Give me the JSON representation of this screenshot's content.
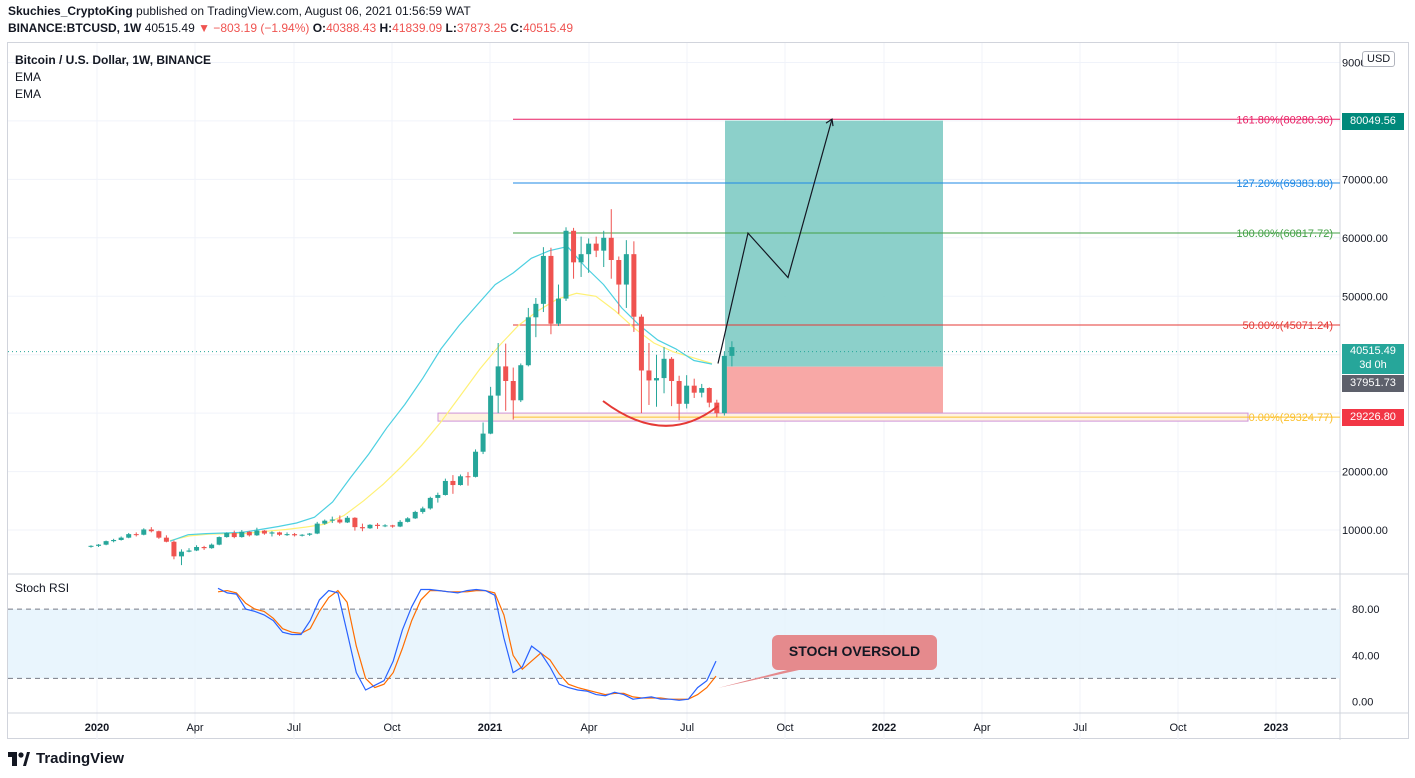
{
  "header": {
    "author": "Skuchies_CryptoKing",
    "published": "published on TradingView.com, August 06, 2021 01:56:59 WAT",
    "symbol": "BINANCE:BTCUSD, 1W",
    "last": "40515.49",
    "change": "▼ −803.19 (−1.94%)",
    "o_label": "O:",
    "o_value": "40388.43",
    "h_label": "H:",
    "h_value": "41839.09",
    "l_label": "L:",
    "l_value": "37873.25",
    "c_label": "C:",
    "c_value": "40515.49"
  },
  "legend": {
    "title": "Bitcoin / U.S. Dollar, 1W, BINANCE",
    "ema1": "EMA",
    "ema2": "EMA",
    "stoch": "Stoch RSI"
  },
  "currency_button": "USD",
  "price_badges": {
    "target": "80049.56",
    "last": "40515.49",
    "countdown": "3d 0h",
    "entry": "37951.73",
    "stop": "29226.80"
  },
  "callout": "STOCH OVERSOLD",
  "footer": {
    "brand": "TradingView"
  },
  "colors": {
    "up": "#26a69a",
    "down": "#ef5350",
    "ema_fast": "#4dd0e1",
    "ema_slow": "#fff176",
    "k_line": "#2962ff",
    "d_line": "#ff6d00",
    "target_zone": "#80cbc4",
    "stop_zone": "#f8a3a1"
  },
  "chart_data": [
    {
      "type": "candlestick",
      "title": "Bitcoin / U.S. Dollar, 1W, BINANCE",
      "x_ticks": [
        "2020",
        "Apr",
        "Jul",
        "Oct",
        "2021",
        "Apr",
        "Jul",
        "Oct",
        "2022",
        "Apr",
        "Jul",
        "Oct",
        "2023"
      ],
      "y_ticks": [
        "10000.00",
        "20000.00",
        "30000.00",
        "40000.00",
        "50000.00",
        "60000.00",
        "70000.00",
        "90000.00"
      ],
      "ylim": [
        0,
        91000
      ],
      "candles": [
        [
          7200,
          7400,
          7000,
          7300
        ],
        [
          7300,
          7600,
          7100,
          7500
        ],
        [
          7500,
          8200,
          7400,
          8100
        ],
        [
          8100,
          8500,
          7900,
          8300
        ],
        [
          8300,
          8900,
          8200,
          8700
        ],
        [
          8700,
          9500,
          8600,
          9300
        ],
        [
          9300,
          9600,
          8900,
          9200
        ],
        [
          9200,
          10300,
          9100,
          10100
        ],
        [
          10100,
          10500,
          9600,
          9800
        ],
        [
          9800,
          9900,
          8500,
          8700
        ],
        [
          8700,
          9100,
          7900,
          8000
        ],
        [
          8000,
          8200,
          5000,
          5500
        ],
        [
          5500,
          6700,
          4000,
          6300
        ],
        [
          6300,
          6900,
          6200,
          6500
        ],
        [
          6500,
          7400,
          6400,
          7100
        ],
        [
          7100,
          7300,
          6600,
          6900
        ],
        [
          6900,
          7700,
          6800,
          7500
        ],
        [
          7500,
          8900,
          7400,
          8800
        ],
        [
          8800,
          9600,
          8700,
          9500
        ],
        [
          9500,
          9900,
          8600,
          8800
        ],
        [
          8800,
          10000,
          8700,
          9700
        ],
        [
          9700,
          9800,
          8900,
          9100
        ],
        [
          9100,
          10400,
          9000,
          9900
        ],
        [
          9900,
          10000,
          9200,
          9400
        ],
        [
          9400,
          9800,
          8900,
          9600
        ],
        [
          9600,
          9700,
          9000,
          9200
        ],
        [
          9200,
          9600,
          9000,
          9300
        ],
        [
          9300,
          9500,
          8900,
          9100
        ],
        [
          9100,
          9300,
          8900,
          9200
        ],
        [
          9200,
          9500,
          9000,
          9400
        ],
        [
          9400,
          11400,
          9300,
          11100
        ],
        [
          11100,
          11800,
          10900,
          11600
        ],
        [
          11600,
          12300,
          11200,
          11800
        ],
        [
          11800,
          12500,
          11100,
          11300
        ],
        [
          11300,
          12400,
          11200,
          12100
        ],
        [
          12100,
          12200,
          9900,
          10500
        ],
        [
          10500,
          11100,
          9800,
          10300
        ],
        [
          10300,
          11000,
          10200,
          10900
        ],
        [
          10900,
          11200,
          10200,
          10700
        ],
        [
          10700,
          11000,
          10500,
          10800
        ],
        [
          10800,
          10900,
          10400,
          10600
        ],
        [
          10600,
          11700,
          10500,
          11400
        ],
        [
          11400,
          12200,
          11300,
          12000
        ],
        [
          12000,
          13300,
          11900,
          13100
        ],
        [
          13100,
          14000,
          12800,
          13700
        ],
        [
          13700,
          15700,
          13500,
          15500
        ],
        [
          15500,
          16400,
          14700,
          16000
        ],
        [
          16000,
          18800,
          15900,
          18400
        ],
        [
          18400,
          19400,
          16200,
          17700
        ],
        [
          17700,
          19500,
          17600,
          19200
        ],
        [
          19200,
          19900,
          17600,
          19100
        ],
        [
          19100,
          23800,
          19000,
          23400
        ],
        [
          23400,
          28400,
          23000,
          26500
        ],
        [
          26500,
          34500,
          26400,
          33000
        ],
        [
          33000,
          42000,
          30000,
          38000
        ],
        [
          38000,
          41900,
          30400,
          35500
        ],
        [
          35500,
          37800,
          28900,
          32200
        ],
        [
          32200,
          38500,
          31900,
          38200
        ],
        [
          38200,
          48000,
          38000,
          46400
        ],
        [
          46400,
          49700,
          43000,
          48700
        ],
        [
          48700,
          58400,
          47300,
          56900
        ],
        [
          56900,
          58300,
          43500,
          45300
        ],
        [
          45300,
          52000,
          44900,
          49600
        ],
        [
          49600,
          61800,
          49200,
          61200
        ],
        [
          61200,
          61700,
          53000,
          55800
        ],
        [
          55800,
          60200,
          53300,
          57200
        ],
        [
          57200,
          59900,
          54000,
          59000
        ],
        [
          59000,
          60200,
          56700,
          57800
        ],
        [
          57800,
          61200,
          55000,
          60000
        ],
        [
          60000,
          64900,
          53000,
          56200
        ],
        [
          56200,
          56800,
          47000,
          52000
        ],
        [
          52000,
          59600,
          48000,
          57200
        ],
        [
          57200,
          59400,
          43900,
          46500
        ],
        [
          46500,
          46900,
          30000,
          37300
        ],
        [
          37300,
          42000,
          31400,
          35600
        ],
        [
          35600,
          40000,
          31100,
          36000
        ],
        [
          36000,
          41300,
          33400,
          39300
        ],
        [
          39300,
          39600,
          31200,
          35500
        ],
        [
          35500,
          36400,
          28800,
          31600
        ],
        [
          31600,
          36500,
          30800,
          34700
        ],
        [
          34700,
          35900,
          32600,
          33500
        ],
        [
          33500,
          35000,
          32700,
          34300
        ],
        [
          34300,
          34400,
          31000,
          31800
        ],
        [
          31800,
          32300,
          29300,
          30000
        ],
        [
          30000,
          40500,
          29600,
          39800
        ],
        [
          39800,
          42300,
          38000,
          41300
        ]
      ],
      "ema_fast": [
        8100,
        9200,
        9400,
        9500,
        9600,
        10100,
        10600,
        11200,
        12200,
        14800,
        19000,
        23000,
        27500,
        31500,
        36000,
        41000,
        45000,
        48500,
        52000,
        54000,
        56500,
        57800,
        58500,
        55000,
        52000,
        48000,
        45000,
        42500,
        41000,
        39000,
        38400
      ],
      "ema_slow": [
        8200,
        9000,
        9300,
        9400,
        9450,
        9800,
        10100,
        10500,
        11000,
        12500,
        15000,
        17800,
        21000,
        24500,
        28500,
        33000,
        37500,
        41500,
        45000,
        47500,
        49500,
        50500,
        50000,
        47500,
        44500,
        42000,
        40500,
        39500,
        38500
      ],
      "fibonacci": [
        {
          "label": "161.80%(80280.36)",
          "value": 80280.36,
          "color": "#e91e63"
        },
        {
          "label": "127.20%(69383.80)",
          "value": 69383.8,
          "color": "#1e88e5"
        },
        {
          "label": "100.00%(60817.72)",
          "value": 60817.72,
          "color": "#43a047"
        },
        {
          "label": "50.00%(45071.24)",
          "value": 45071.24,
          "color": "#e53935"
        },
        {
          "label": "0.00%(29324.77)",
          "value": 29324.77,
          "color": "#fbc02d"
        }
      ],
      "position": {
        "entry": 37951.73,
        "target": 80049.56,
        "stop": 29226.8
      },
      "projection": [
        38500,
        60800,
        53200,
        80300
      ]
    },
    {
      "type": "line",
      "title": "Stoch RSI",
      "y_ticks": [
        "0.00",
        "40.00",
        "80.00"
      ],
      "ylim": [
        -8,
        110
      ],
      "bands": [
        20,
        80
      ],
      "k": [
        98,
        94,
        93,
        80,
        78,
        75,
        70,
        60,
        58,
        58,
        70,
        88,
        96,
        94,
        60,
        25,
        10,
        14,
        18,
        35,
        62,
        82,
        97,
        97,
        96,
        95,
        94,
        96,
        97,
        96,
        92,
        55,
        25,
        30,
        48,
        42,
        30,
        15,
        12,
        10,
        9,
        6,
        5,
        8,
        6,
        2,
        3,
        4,
        2,
        2,
        1,
        2,
        12,
        18,
        35
      ],
      "d": [
        95,
        96,
        94,
        85,
        80,
        78,
        72,
        63,
        60,
        59,
        63,
        78,
        90,
        96,
        86,
        48,
        20,
        12,
        15,
        25,
        46,
        70,
        88,
        96,
        96,
        95,
        95,
        95,
        96,
        96,
        94,
        75,
        40,
        28,
        35,
        42,
        36,
        24,
        15,
        12,
        10,
        8,
        6,
        7,
        7,
        4,
        3,
        3,
        3,
        2,
        2,
        2,
        6,
        12,
        22
      ]
    }
  ]
}
